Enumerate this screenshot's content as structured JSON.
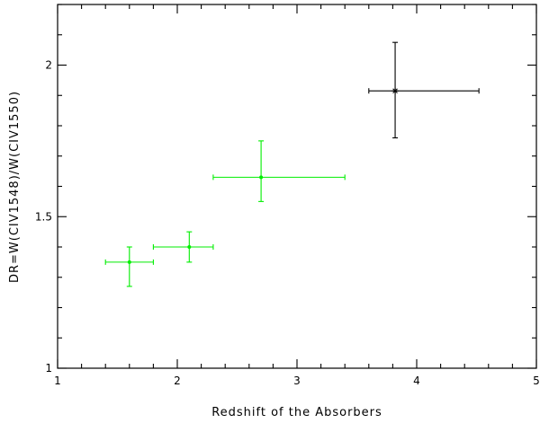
{
  "chart_data": {
    "type": "scatter",
    "title": "",
    "xlabel": "Redshift of the Absorbers",
    "ylabel": "DR=W(CIV1548)/W(CIV1550)",
    "xlim": [
      1,
      5
    ],
    "ylim": [
      1,
      2.2
    ],
    "xticks": [
      1,
      2,
      3,
      4,
      5
    ],
    "yticks": [
      1,
      1.5,
      2
    ],
    "grid": false,
    "series": [
      {
        "color": "#00ee00",
        "marker": "dot",
        "points": [
          {
            "x": 1.6,
            "y": 1.35,
            "xlo": 1.4,
            "xhi": 1.8,
            "ylo": 1.27,
            "yhi": 1.4
          },
          {
            "x": 2.1,
            "y": 1.4,
            "xlo": 1.8,
            "xhi": 2.3,
            "ylo": 1.35,
            "yhi": 1.45
          },
          {
            "x": 2.7,
            "y": 1.63,
            "xlo": 2.3,
            "xhi": 3.4,
            "ylo": 1.55,
            "yhi": 1.75
          }
        ]
      },
      {
        "color": "#000000",
        "marker": "star",
        "points": [
          {
            "x": 3.82,
            "y": 1.915,
            "xlo": 3.6,
            "xhi": 4.52,
            "ylo": 1.76,
            "yhi": 2.075
          }
        ]
      }
    ]
  }
}
